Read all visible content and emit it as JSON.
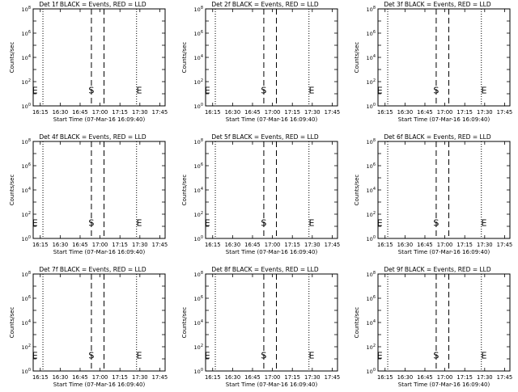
{
  "chart_data": [
    {
      "type": "line",
      "title": "Det 1f BLACK = Events, RED = LLD",
      "ylabel": "Counts/sec",
      "xlabel": "Start Time (07-Mar-16 16:09:40)"
    },
    {
      "type": "line",
      "title": "Det 2f BLACK = Events, RED = LLD",
      "ylabel": "Counts/sec",
      "xlabel": "Start Time (07-Mar-16 16:09:40)"
    },
    {
      "type": "line",
      "title": "Det 3f BLACK = Events, RED = LLD",
      "ylabel": "Counts/sec",
      "xlabel": "Start Time (07-Mar-16 16:09:40)"
    },
    {
      "type": "line",
      "title": "Det 4f BLACK = Events, RED = LLD",
      "ylabel": "Counts/sec",
      "xlabel": "Start Time (07-Mar-16 16:09:40)"
    },
    {
      "type": "line",
      "title": "Det 5f BLACK = Events, RED = LLD",
      "ylabel": "Counts/sec",
      "xlabel": "Start Time (07-Mar-16 16:09:40)"
    },
    {
      "type": "line",
      "title": "Det 6f BLACK = Events, RED = LLD",
      "ylabel": "Counts/sec",
      "xlabel": "Start Time (07-Mar-16 16:09:40)"
    },
    {
      "type": "line",
      "title": "Det 7f BLACK = Events, RED = LLD",
      "ylabel": "Counts/sec",
      "xlabel": "Start Time (07-Mar-16 16:09:40)"
    },
    {
      "type": "line",
      "title": "Det 8f BLACK = Events, RED = LLD",
      "ylabel": "Counts/sec",
      "xlabel": "Start Time (07-Mar-16 16:09:40)"
    },
    {
      "type": "line",
      "title": "Det 9f BLACK = Events, RED = LLD",
      "ylabel": "Counts/sec",
      "xlabel": "Start Time (07-Mar-16 16:09:40)"
    }
  ],
  "shared": {
    "x_range": [
      "16:09:40",
      "17:49:00"
    ],
    "x_ticks": [
      "16:15",
      "16:30",
      "16:45",
      "17:00",
      "17:15",
      "17:30",
      "17:45"
    ],
    "y_scale": "log",
    "y_range": [
      1,
      100000000
    ],
    "y_ticks": [
      1,
      10,
      100,
      1000,
      10000,
      100000,
      1000000,
      10000000,
      100000000
    ],
    "y_tick_labels": [
      {
        "base": "10",
        "exp": "0"
      },
      {
        "base": "10",
        "exp": "2"
      },
      {
        "base": "10",
        "exp": "4"
      },
      {
        "base": "10",
        "exp": "6"
      },
      {
        "base": "10",
        "exp": "8"
      }
    ],
    "dotted_lines": [
      "16:17:00",
      "17:27:30"
    ],
    "dashed_lines": [
      "16:53:30",
      "17:03:00"
    ],
    "markers": [
      {
        "label": "E",
        "x": "16:11:00",
        "y": 20
      },
      {
        "label": "S",
        "x": "16:53:30",
        "y": 20
      },
      {
        "label": "E",
        "x": "17:29:30",
        "y": 20
      }
    ]
  }
}
